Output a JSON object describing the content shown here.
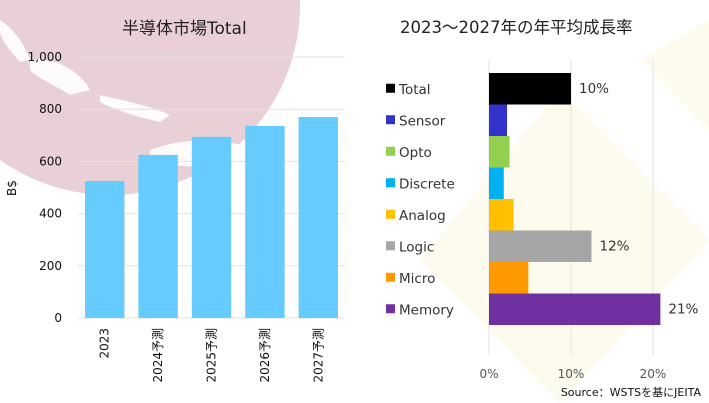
{
  "chart_data": [
    {
      "type": "bar",
      "title": "半導体市場Total",
      "ylabel": "B$",
      "xlabel": "",
      "ylim": [
        0,
        1000
      ],
      "yticks": [
        "0",
        "200",
        "400",
        "600",
        "800",
        "1,000"
      ],
      "categories": [
        "2023",
        "2024予測",
        "2025予測",
        "2026予測",
        "2027予測"
      ],
      "values": [
        525,
        625,
        694,
        736,
        770
      ],
      "grid": true,
      "bar_color": "#66CCFF"
    },
    {
      "type": "bar",
      "orientation": "horizontal",
      "title": "2023～2027年の年平均成長率",
      "xlim": [
        0,
        0.25
      ],
      "xticks": [
        "0%",
        "10%",
        "20%"
      ],
      "categories": [
        "Total",
        "Sensor",
        "Opto",
        "Discrete",
        "Analog",
        "Logic",
        "Micro",
        "Memory"
      ],
      "values": [
        0.1,
        0.022,
        0.025,
        0.018,
        0.03,
        0.125,
        0.048,
        0.209
      ],
      "data_labels": [
        "10%",
        "",
        "",
        "",
        "",
        "12%",
        "",
        "21%"
      ],
      "colors": [
        "#000000",
        "#3333CC",
        "#92D050",
        "#00B0F0",
        "#FFC000",
        "#A6A6A6",
        "#FF9900",
        "#7030A0"
      ],
      "grid": true,
      "legend": "left"
    }
  ],
  "source": "Source：WSTSを基にJEITA"
}
